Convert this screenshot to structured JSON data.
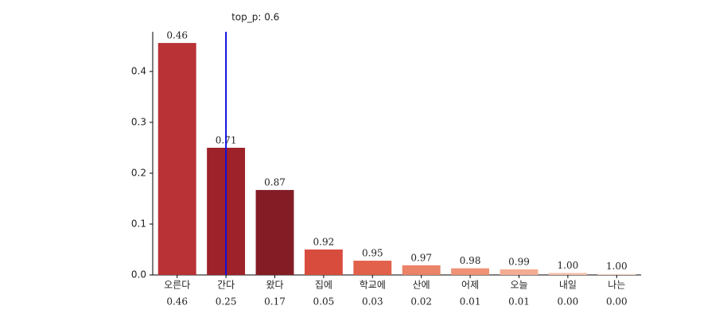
{
  "chart_data": {
    "type": "bar",
    "categories": [
      "오른다",
      "간다",
      "왔다",
      "집에",
      "학교에",
      "산에",
      "어제",
      "오늘",
      "내일",
      "나는"
    ],
    "values": [
      0.456,
      0.25,
      0.167,
      0.05,
      0.028,
      0.019,
      0.013,
      0.011,
      0.004,
      0.002
    ],
    "value_labels": [
      "0.46",
      "0.25",
      "0.17",
      "0.05",
      "0.03",
      "0.02",
      "0.01",
      "0.01",
      "0.00",
      "0.00"
    ],
    "top_labels": [
      "0.46",
      "0.71",
      "0.87",
      "0.92",
      "0.95",
      "0.97",
      "0.98",
      "0.99",
      "1.00",
      "1.00"
    ],
    "colors": [
      "#b83236",
      "#9e2229",
      "#831c24",
      "#d84c3e",
      "#e2614a",
      "#ea8368",
      "#ef9276",
      "#f3ad93",
      "#f7c3ad",
      "#f9d9c8"
    ],
    "ylim": [
      0,
      0.478
    ],
    "yticks": [
      {
        "value": 0,
        "label": "0.0"
      },
      0.1,
      0.2,
      0.3,
      0.4
    ],
    "threshold_label": "top_p: 0.6",
    "threshold_at": "간다",
    "threshold_color": "#1010e0"
  }
}
